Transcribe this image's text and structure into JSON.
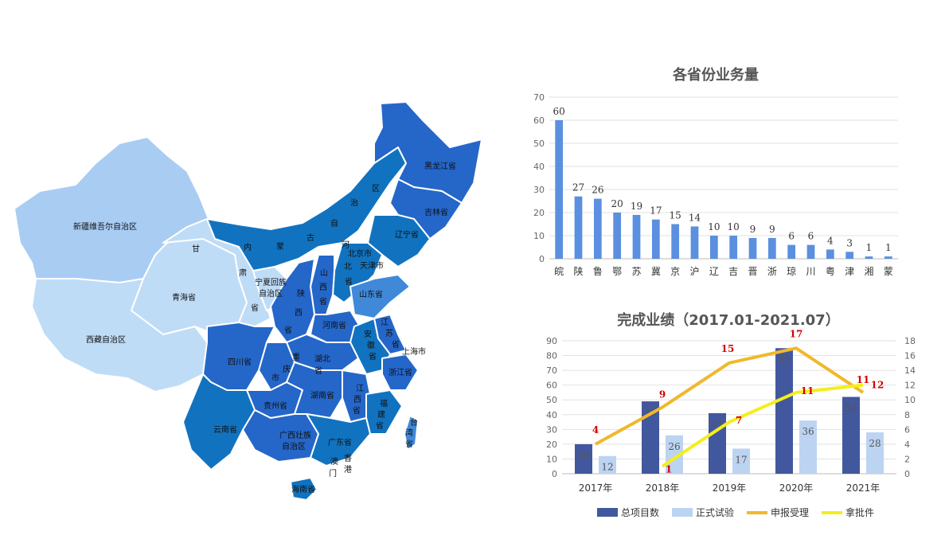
{
  "map": {
    "colors": {
      "level1": "#a9ccf3",
      "level2": "#bfdcf7",
      "level3": "#2566c9",
      "level4": "#1173c0",
      "level5": "#3f89d8"
    },
    "labels": [
      "新疆维吾尔自治区",
      "西藏自治区",
      "青海省",
      "甘",
      "肃",
      "省",
      "宁夏回族",
      "自治区",
      "内",
      "蒙",
      "古",
      "自",
      "治",
      "区",
      "黑龙江省",
      "吉林省",
      "辽宁省",
      "北京市",
      "天津市",
      "河",
      "北",
      "省",
      "山",
      "西",
      "省",
      "陕",
      "西",
      "省",
      "山东省",
      "河南省",
      "江",
      "苏",
      "省",
      "安",
      "徽",
      "省",
      "上海市",
      "浙江省",
      "湖北",
      "省",
      "重",
      "庆",
      "市",
      "四川省",
      "贵州省",
      "湖南省",
      "江",
      "西",
      "省",
      "福",
      "建",
      "省",
      "云南省",
      "广西壮族",
      "自治区",
      "广东省",
      "台",
      "湾",
      "省",
      "香",
      "港",
      "澳",
      "门",
      "海南省"
    ]
  },
  "chart_data": [
    {
      "type": "bar",
      "title": "各省份业务量",
      "categories": [
        "皖",
        "陕",
        "鲁",
        "鄂",
        "苏",
        "冀",
        "京",
        "沪",
        "辽",
        "吉",
        "晋",
        "浙",
        "琼",
        "川",
        "粤",
        "津",
        "湘",
        "蒙"
      ],
      "values": [
        60,
        27,
        26,
        20,
        19,
        17,
        15,
        14,
        10,
        10,
        9,
        9,
        6,
        6,
        4,
        3,
        1,
        1
      ],
      "ylim": [
        0,
        70
      ],
      "yticks": [
        0,
        10,
        20,
        30,
        40,
        50,
        60,
        70
      ],
      "color": "#5b8fe0",
      "grid": true
    },
    {
      "type": "bar+line",
      "title": "完成业绩（2017.01-2021.07）",
      "categories": [
        "2017年",
        "2018年",
        "2019年",
        "2020年",
        "2021年"
      ],
      "series": [
        {
          "name": "总项目数",
          "type": "bar",
          "axis": "left",
          "color": "#42589e",
          "values": [
            20,
            49,
            41,
            85,
            52
          ]
        },
        {
          "name": "正式试验",
          "type": "bar",
          "axis": "left",
          "color": "#bcd4f2",
          "values": [
            12,
            26,
            17,
            36,
            28
          ]
        },
        {
          "name": "申报受理",
          "type": "line",
          "axis": "right",
          "color": "#f0b82a",
          "values": [
            4,
            9,
            15,
            17,
            11
          ]
        },
        {
          "name": "拿批件",
          "type": "line",
          "axis": "right",
          "color": "#f4ee1c",
          "values": [
            null,
            1,
            7,
            11,
            12
          ]
        }
      ],
      "ylim_left": [
        0,
        90
      ],
      "yticks_left": [
        0,
        10,
        20,
        30,
        40,
        50,
        60,
        70,
        80,
        90
      ],
      "ylim_right": [
        0,
        18
      ],
      "yticks_right": [
        0,
        2,
        4,
        6,
        8,
        10,
        12,
        14,
        16,
        18
      ],
      "legend_position": "bottom",
      "grid": true
    }
  ]
}
